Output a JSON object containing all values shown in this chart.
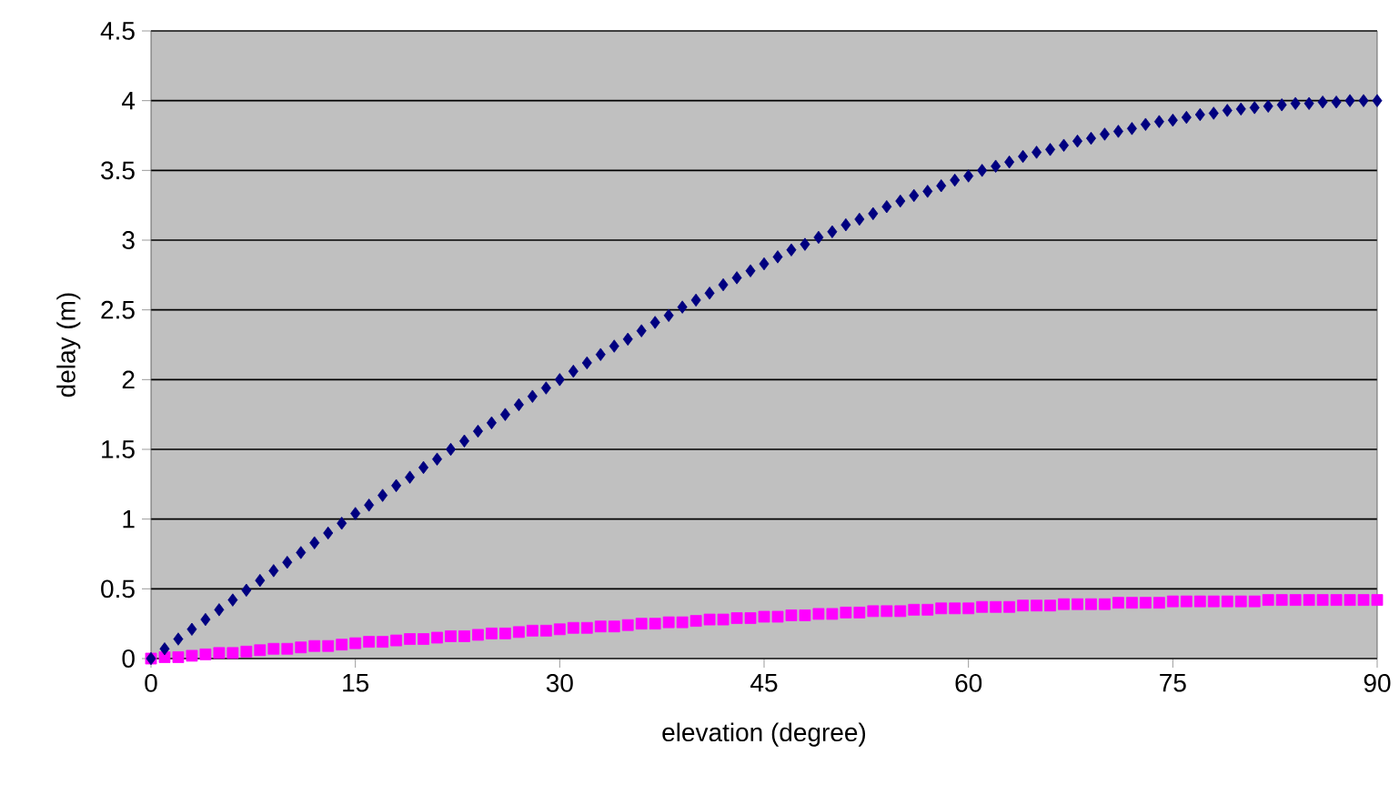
{
  "chart_data": {
    "type": "scatter",
    "xlabel": "elevation (degree)",
    "ylabel": "delay (m)",
    "x": [
      0,
      1,
      2,
      3,
      4,
      5,
      6,
      7,
      8,
      9,
      10,
      11,
      12,
      13,
      14,
      15,
      16,
      17,
      18,
      19,
      20,
      21,
      22,
      23,
      24,
      25,
      26,
      27,
      28,
      29,
      30,
      31,
      32,
      33,
      34,
      35,
      36,
      37,
      38,
      39,
      40,
      41,
      42,
      43,
      44,
      45,
      46,
      47,
      48,
      49,
      50,
      51,
      52,
      53,
      54,
      55,
      56,
      57,
      58,
      59,
      60,
      61,
      62,
      63,
      64,
      65,
      66,
      67,
      68,
      69,
      70,
      71,
      72,
      73,
      74,
      75,
      76,
      77,
      78,
      79,
      80,
      81,
      82,
      83,
      84,
      85,
      86,
      87,
      88,
      89,
      90
    ],
    "series": [
      {
        "color": "#000080",
        "marker": "diamond",
        "values": [
          0,
          0.07,
          0.14,
          0.21,
          0.28,
          0.35,
          0.42,
          0.49,
          0.56,
          0.63,
          0.69,
          0.76,
          0.83,
          0.9,
          0.97,
          1.04,
          1.1,
          1.17,
          1.24,
          1.3,
          1.37,
          1.43,
          1.5,
          1.56,
          1.63,
          1.69,
          1.75,
          1.82,
          1.88,
          1.94,
          2.0,
          2.06,
          2.12,
          2.18,
          2.24,
          2.29,
          2.35,
          2.41,
          2.46,
          2.52,
          2.57,
          2.62,
          2.68,
          2.73,
          2.78,
          2.83,
          2.88,
          2.93,
          2.97,
          3.02,
          3.06,
          3.11,
          3.15,
          3.19,
          3.24,
          3.28,
          3.32,
          3.35,
          3.39,
          3.43,
          3.46,
          3.5,
          3.53,
          3.56,
          3.6,
          3.63,
          3.65,
          3.68,
          3.71,
          3.73,
          3.76,
          3.78,
          3.8,
          3.83,
          3.85,
          3.86,
          3.88,
          3.9,
          3.91,
          3.93,
          3.94,
          3.95,
          3.96,
          3.97,
          3.98,
          3.98,
          3.99,
          3.99,
          4.0,
          4.0,
          4.0
        ]
      },
      {
        "color": "#ff00ff",
        "marker": "square",
        "values": [
          0,
          0.01,
          0.01,
          0.02,
          0.03,
          0.04,
          0.04,
          0.05,
          0.06,
          0.07,
          0.07,
          0.08,
          0.09,
          0.09,
          0.1,
          0.11,
          0.12,
          0.12,
          0.13,
          0.14,
          0.14,
          0.15,
          0.16,
          0.16,
          0.17,
          0.18,
          0.18,
          0.19,
          0.2,
          0.2,
          0.21,
          0.22,
          0.22,
          0.23,
          0.23,
          0.24,
          0.25,
          0.25,
          0.26,
          0.26,
          0.27,
          0.28,
          0.28,
          0.29,
          0.29,
          0.3,
          0.3,
          0.31,
          0.31,
          0.32,
          0.32,
          0.33,
          0.33,
          0.34,
          0.34,
          0.34,
          0.35,
          0.35,
          0.36,
          0.36,
          0.36,
          0.37,
          0.37,
          0.37,
          0.38,
          0.38,
          0.38,
          0.39,
          0.39,
          0.39,
          0.39,
          0.4,
          0.4,
          0.4,
          0.4,
          0.41,
          0.41,
          0.41,
          0.41,
          0.41,
          0.41,
          0.41,
          0.42,
          0.42,
          0.42,
          0.42,
          0.42,
          0.42,
          0.42,
          0.42,
          0.42
        ]
      }
    ],
    "xlim": [
      0,
      90
    ],
    "xticks": [
      0,
      15,
      30,
      45,
      60,
      75,
      90
    ],
    "ylim": [
      0,
      4.5
    ],
    "yticks": [
      0,
      0.5,
      1,
      1.5,
      2,
      2.5,
      3,
      3.5,
      4,
      4.5
    ],
    "grid": "y"
  }
}
